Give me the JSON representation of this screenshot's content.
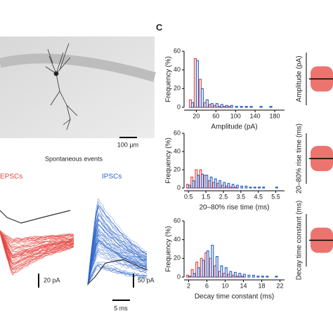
{
  "figure": {
    "panel_label": "C",
    "scale_bar_image": "100 µm",
    "events_title": "Spontaneous events",
    "epsc_label": "EPSCs",
    "ipsc_label": "IPSCs",
    "epsc_scale": "20 pA",
    "ipsc_scale": "50 pA",
    "time_scale": "5 ms",
    "right_ylabels": [
      "Amplitude (pA)",
      "20–80% rise time (ms)",
      "Decay time constant (ms)"
    ]
  },
  "chart_data": [
    {
      "type": "bar",
      "xlabel": "Amplitude (pA)",
      "ylabel": "Frequency (%)",
      "x": [
        10,
        20,
        30,
        40,
        50,
        60,
        70,
        80,
        90,
        100,
        110,
        120,
        130,
        140,
        150,
        160,
        170,
        180,
        190
      ],
      "series": [
        {
          "color": "#e5453f",
          "values": [
            8,
            52,
            30,
            5,
            3,
            2,
            1,
            1,
            1,
            0,
            0,
            0,
            0,
            0,
            0,
            0,
            0,
            0,
            0
          ]
        },
        {
          "color": "#2d64c8",
          "values": [
            5,
            50,
            20,
            8,
            4,
            4,
            3,
            2,
            2,
            1,
            1,
            1,
            1,
            0,
            1,
            0,
            1,
            0,
            0
          ]
        }
      ],
      "xlim": [
        -5,
        200
      ],
      "ylim": [
        0,
        60
      ],
      "xticks": [
        20,
        60,
        100,
        140,
        180
      ],
      "yticks": [
        0,
        20,
        40,
        60
      ]
    },
    {
      "type": "bar",
      "xlabel": "20–80% rise time (ms)",
      "ylabel": "Frequency (%)",
      "x": [
        0.5,
        0.75,
        1,
        1.25,
        1.5,
        1.75,
        2,
        2.25,
        2.5,
        2.75,
        3,
        3.25,
        3.5,
        3.75,
        4,
        4.25,
        4.5,
        4.75,
        5,
        5.25,
        5.5,
        5.75
      ],
      "series": [
        {
          "color": "#e5453f",
          "values": [
            4,
            12,
            20,
            20,
            14,
            8,
            6,
            5,
            3,
            2,
            1,
            1,
            0,
            0,
            0,
            0,
            0,
            0,
            0,
            0,
            0,
            0
          ]
        },
        {
          "color": "#2d64c8",
          "values": [
            3,
            8,
            14,
            15,
            14,
            12,
            10,
            8,
            6,
            5,
            4,
            3,
            2,
            2,
            1,
            1,
            1,
            1,
            0,
            0,
            1,
            0
          ]
        }
      ],
      "xlim": [
        0.25,
        6
      ],
      "ylim": [
        0,
        60
      ],
      "xticks": [
        0.5,
        1.5,
        2.5,
        3.5,
        4.5,
        5.5
      ],
      "yticks": [
        0,
        20,
        40,
        60
      ]
    },
    {
      "type": "bar",
      "xlabel": "Decay time constant (ms)",
      "ylabel": "Frequency (%)",
      "x": [
        2,
        3,
        4,
        5,
        6,
        7,
        8,
        9,
        10,
        11,
        12,
        13,
        14,
        15,
        16,
        17,
        18,
        19,
        20,
        21,
        22
      ],
      "series": [
        {
          "color": "#e5453f",
          "values": [
            2,
            8,
            16,
            20,
            26,
            20,
            12,
            6,
            4,
            3,
            2,
            1,
            1,
            0,
            0,
            0,
            0,
            0,
            0,
            0,
            0
          ]
        },
        {
          "color": "#2d64c8",
          "values": [
            1,
            4,
            10,
            18,
            28,
            34,
            22,
            12,
            10,
            6,
            5,
            4,
            3,
            2,
            2,
            1,
            1,
            1,
            0,
            1,
            0
          ]
        }
      ],
      "xlim": [
        1,
        23
      ],
      "ylim": [
        0,
        60
      ],
      "xticks": [
        2,
        6,
        10,
        14,
        18,
        22
      ],
      "yticks": [
        0,
        20,
        40,
        60
      ]
    }
  ]
}
